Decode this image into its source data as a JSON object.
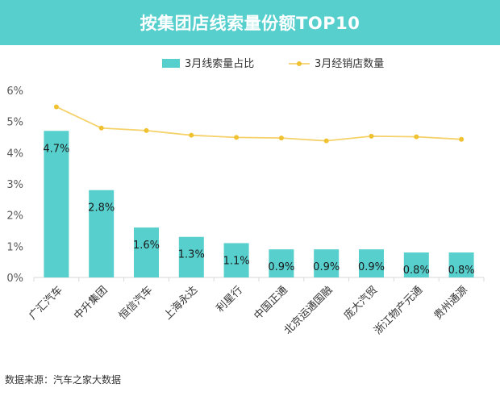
{
  "header": {
    "title": "按集团店线索量份额TOP10"
  },
  "footer": {
    "source": "数据来源：汽车之家大数据"
  },
  "colors": {
    "banner": "#56cfcd",
    "bar": "#56cfcd",
    "line": "#f5d169",
    "axis_text": "#595959",
    "gridline": "#d9d9d9"
  },
  "chart_data": {
    "type": "bar",
    "title": "按集团店线索量份额TOP10",
    "categories": [
      "广汇汽车",
      "中升集团",
      "恒信汽车",
      "上海永达",
      "利星行",
      "中国正通",
      "北京运通国融",
      "庞大汽贸",
      "浙江物产元通",
      "贵州通源"
    ],
    "y_ticks": [
      "0%",
      "1%",
      "2%",
      "3%",
      "4%",
      "5%",
      "6%"
    ],
    "ylim": [
      0,
      6
    ],
    "grid": false,
    "legend_position": "top",
    "series": [
      {
        "name": "3月线索量占比",
        "type": "bar",
        "values": [
          4.7,
          2.8,
          1.6,
          1.3,
          1.1,
          0.9,
          0.9,
          0.9,
          0.8,
          0.8
        ],
        "labels": [
          "4.7%",
          "2.8%",
          "1.6%",
          "1.3%",
          "1.1%",
          "0.9%",
          "0.9%",
          "0.9%",
          "0.8%",
          "0.8%"
        ]
      },
      {
        "name": "3月经销店数量",
        "type": "line",
        "values": [
          5.47,
          4.79,
          4.71,
          4.56,
          4.49,
          4.47,
          4.38,
          4.53,
          4.51,
          4.43
        ]
      }
    ]
  }
}
